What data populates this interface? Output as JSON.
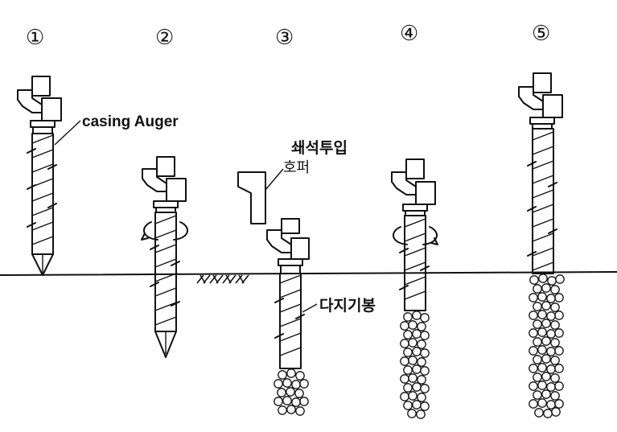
{
  "steps": [
    {
      "label": "①"
    },
    {
      "label": "②"
    },
    {
      "label": "③"
    },
    {
      "label": "④"
    },
    {
      "label": "⑤"
    }
  ],
  "annotations": {
    "casing_auger": "casing Auger",
    "gravel_input": "쇄석투입",
    "hopper": "호퍼",
    "compaction": "다지기봉"
  },
  "colors": {
    "ink": "#111111",
    "background": "#ffffff"
  }
}
